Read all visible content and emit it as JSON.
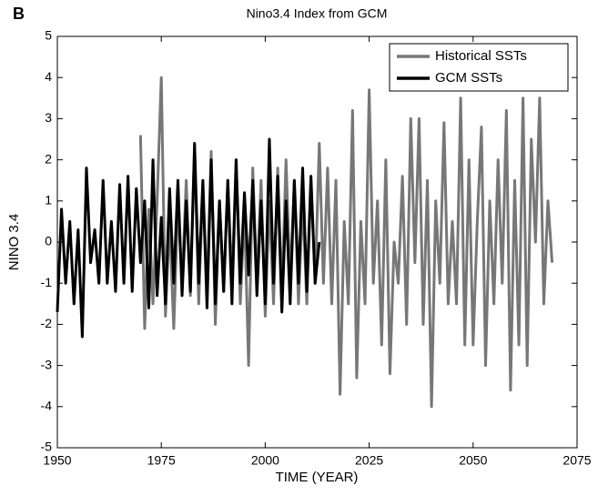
{
  "chart_data": {
    "type": "line",
    "panel_label": "B",
    "title": "Nino3.4 Index from GCM",
    "xlabel": "TIME (YEAR)",
    "ylabel": "NINO 3.4",
    "xlim": [
      1950,
      2075
    ],
    "xticks": [
      1950,
      1975,
      2000,
      2025,
      2050,
      2075
    ],
    "ylim": [
      -5,
      5
    ],
    "yticks": [
      -5,
      -4,
      -3,
      -2,
      -1,
      0,
      1,
      2,
      3,
      4,
      5
    ],
    "legend": "upper right",
    "grid": false,
    "series": [
      {
        "name": "Historical SSTs",
        "color": "#777777",
        "x": [
          1970,
          1971,
          1972,
          1973,
          1974,
          1975,
          1976,
          1977,
          1978,
          1979,
          1980,
          1981,
          1982,
          1983,
          1984,
          1985,
          1986,
          1987,
          1988,
          1989,
          1990,
          1991,
          1992,
          1993,
          1994,
          1995,
          1996,
          1997,
          1998,
          1999,
          2000,
          2001,
          2002,
          2003,
          2004,
          2005,
          2006,
          2007,
          2008,
          2009,
          2010,
          2011,
          2012,
          2013,
          2014,
          2015,
          2016,
          2017,
          2018,
          2019,
          2020,
          2021,
          2022,
          2023,
          2024,
          2025,
          2026,
          2027,
          2028,
          2029,
          2030,
          2031,
          2032,
          2033,
          2034,
          2035,
          2036,
          2037,
          2038,
          2039,
          2040,
          2041,
          2042,
          2043,
          2044,
          2045,
          2046,
          2047,
          2048,
          2049,
          2050,
          2051,
          2052,
          2053,
          2054,
          2055,
          2056,
          2057,
          2058,
          2059,
          2060,
          2061,
          2062,
          2063,
          2064,
          2065,
          2066,
          2067,
          2068,
          2069
        ],
        "values": [
          2.6,
          -2.1,
          0.8,
          -1.5,
          1.0,
          4.0,
          -1.8,
          0.5,
          -2.1,
          1.0,
          -1.0,
          1.5,
          -1.3,
          2.3,
          -1.5,
          1.4,
          -1.2,
          2.2,
          -2.0,
          1.0,
          -1.2,
          1.5,
          -1.0,
          2.0,
          -1.5,
          0.8,
          -3.0,
          1.8,
          -1.0,
          1.5,
          -1.8,
          1.0,
          -1.5,
          1.8,
          -1.3,
          2.0,
          -1.0,
          1.5,
          -1.5,
          1.0,
          -1.5,
          1.5,
          -1.0,
          2.4,
          -1.0,
          1.8,
          -1.5,
          1.5,
          -3.7,
          0.5,
          -1.5,
          3.2,
          -3.3,
          0.5,
          -1.5,
          3.7,
          -1.0,
          1.0,
          -2.5,
          2.0,
          -3.2,
          0.0,
          -1.0,
          1.6,
          -2.0,
          3.0,
          -0.5,
          3.0,
          -2.0,
          1.5,
          -4.0,
          1.0,
          -1.0,
          2.9,
          -1.5,
          0.5,
          -1.5,
          3.5,
          -2.5,
          2.0,
          -2.5,
          0.5,
          2.8,
          -3.0,
          1.0,
          -1.5,
          2.0,
          -1.0,
          3.2,
          -3.6,
          1.5,
          -2.5,
          3.5,
          -3.0,
          2.5,
          0.0,
          3.5,
          -1.5,
          1.0,
          -0.5
        ]
      },
      {
        "name": "GCM SSTs",
        "color": "#000000",
        "x": [
          1950,
          1951,
          1952,
          1953,
          1954,
          1955,
          1956,
          1957,
          1958,
          1959,
          1960,
          1961,
          1962,
          1963,
          1964,
          1965,
          1966,
          1967,
          1968,
          1969,
          1970,
          1971,
          1972,
          1973,
          1974,
          1975,
          1976,
          1977,
          1978,
          1979,
          1980,
          1981,
          1982,
          1983,
          1984,
          1985,
          1986,
          1987,
          1988,
          1989,
          1990,
          1991,
          1992,
          1993,
          1994,
          1995,
          1996,
          1997,
          1998,
          1999,
          2000,
          2001,
          2002,
          2003,
          2004,
          2005,
          2006,
          2007,
          2008,
          2009,
          2010,
          2011,
          2012,
          2013
        ],
        "values": [
          -1.7,
          0.8,
          -1.0,
          0.5,
          -1.5,
          0.3,
          -2.3,
          1.8,
          -0.5,
          0.3,
          -1.0,
          1.5,
          -1.0,
          0.5,
          -1.2,
          1.4,
          -1.0,
          1.6,
          -1.2,
          1.3,
          -0.5,
          1.0,
          -1.6,
          2.0,
          -1.3,
          0.6,
          -1.5,
          1.3,
          -1.0,
          1.5,
          -1.3,
          1.0,
          -1.2,
          2.4,
          -1.0,
          1.5,
          -1.6,
          2.0,
          -1.5,
          1.0,
          -1.2,
          1.5,
          -1.5,
          2.0,
          -1.0,
          1.2,
          -0.8,
          1.5,
          -1.3,
          1.0,
          -1.5,
          2.5,
          -1.0,
          1.6,
          -1.7,
          1.0,
          -1.5,
          1.5,
          -1.0,
          1.8,
          -1.2,
          1.6,
          -1.0,
          0.0
        ]
      }
    ]
  }
}
